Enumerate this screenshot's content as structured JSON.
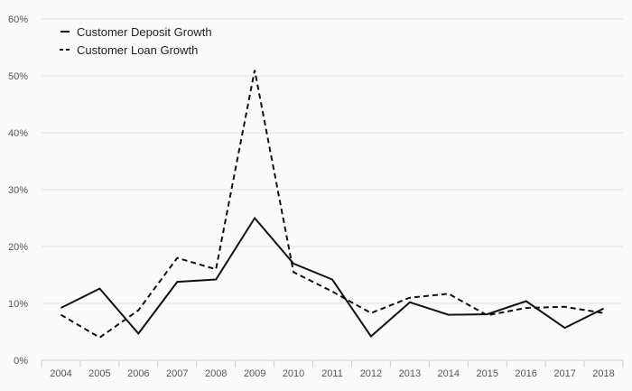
{
  "chart_data": {
    "type": "line",
    "categories": [
      "2004",
      "2005",
      "2006",
      "2007",
      "2008",
      "2009",
      "2010",
      "2011",
      "2012",
      "2013",
      "2014",
      "2015",
      "2016",
      "2017",
      "2018"
    ],
    "series": [
      {
        "name": "Customer Deposit Growth",
        "values": [
          9.2,
          12.6,
          4.7,
          13.8,
          14.2,
          25.0,
          17.0,
          14.2,
          4.2,
          10.2,
          8.0,
          8.1,
          10.4,
          5.7,
          9.1
        ],
        "dash": "solid",
        "color": "#111111"
      },
      {
        "name": "Customer Loan Growth",
        "values": [
          8.0,
          4.0,
          8.8,
          18.0,
          16.0,
          51.0,
          15.5,
          12.1,
          8.3,
          11.0,
          11.7,
          7.9,
          9.2,
          9.4,
          8.3
        ],
        "dash": "dashed",
        "color": "#111111"
      }
    ],
    "yticks": [
      "0%",
      "10%",
      "20%",
      "30%",
      "40%",
      "50%",
      "60%"
    ],
    "ylim": [
      0,
      60
    ],
    "grid": true,
    "legend_position": "top-left"
  }
}
